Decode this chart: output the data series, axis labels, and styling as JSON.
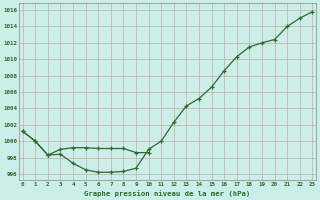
{
  "line1_x": [
    0,
    1,
    2,
    3,
    4,
    5,
    6,
    7,
    8,
    9,
    10,
    11,
    12,
    13,
    14,
    15,
    16,
    17,
    18,
    19,
    20,
    21,
    22,
    23
  ],
  "line1_y": [
    1001.2,
    1000.0,
    998.3,
    998.4,
    997.3,
    996.5,
    996.2,
    996.2,
    996.3,
    996.7,
    999.0,
    1000.0,
    1002.3,
    1004.3,
    1005.2,
    1006.6,
    1008.6,
    1010.3,
    1011.5,
    1012.0,
    1012.4,
    1014.0,
    1015.0,
    1015.8
  ],
  "line2_x": [
    0,
    1,
    2,
    3,
    4,
    5,
    6,
    7,
    8,
    9,
    10
  ],
  "line2_y": [
    1001.2,
    1000.0,
    998.3,
    999.0,
    999.2,
    999.2,
    999.1,
    999.1,
    999.1,
    998.6,
    998.6
  ],
  "line_color": "#2d6a2d",
  "bg_color": "#cceee8",
  "grid_color": "#c8a8a8",
  "xlabel": "Graphe pression niveau de la mer (hPa)",
  "ylim": [
    995.2,
    1016.8
  ],
  "yticks": [
    996,
    998,
    1000,
    1002,
    1004,
    1006,
    1008,
    1010,
    1012,
    1014,
    1016
  ],
  "xticks": [
    0,
    1,
    2,
    3,
    4,
    5,
    6,
    7,
    8,
    9,
    10,
    11,
    12,
    13,
    14,
    15,
    16,
    17,
    18,
    19,
    20,
    21,
    22,
    23
  ],
  "xlim": [
    -0.3,
    23.3
  ],
  "marker": "+"
}
